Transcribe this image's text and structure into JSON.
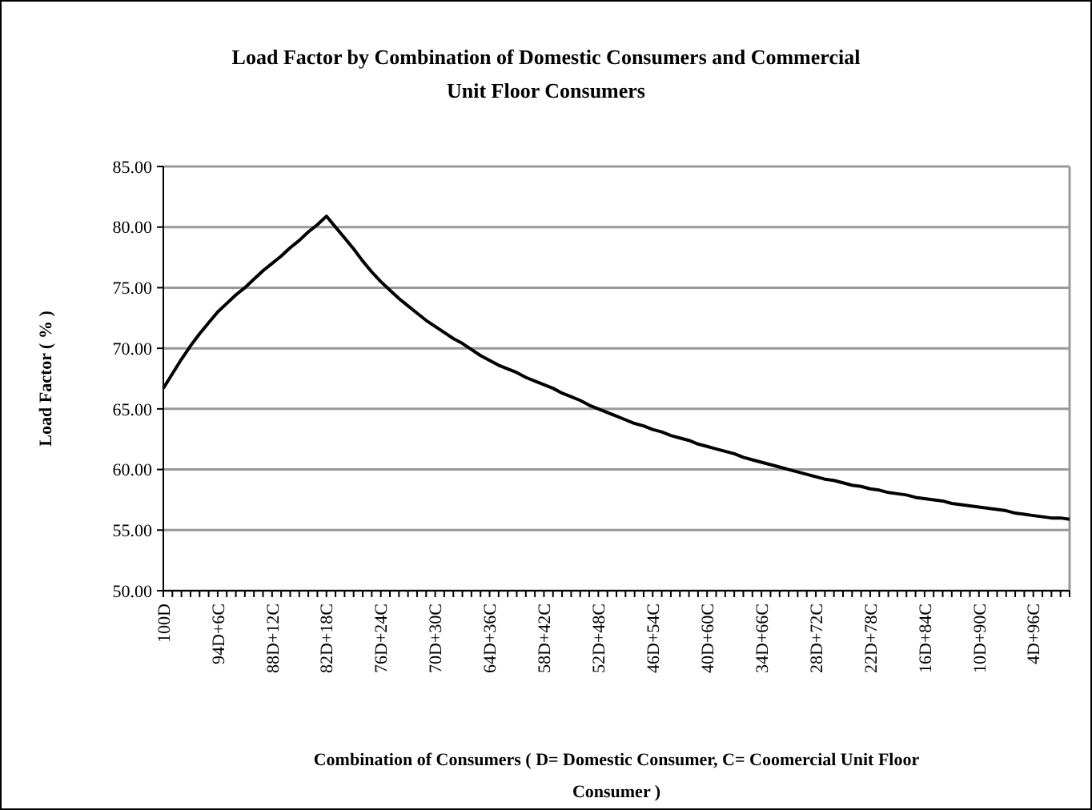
{
  "chart_data": {
    "type": "line",
    "title": "Load Factor by Combination of Domestic Consumers and Commercial Unit Floor Consumers",
    "xlabel": "Combination of Consumers ( D= Domestic Consumer, C= Coomercial Unit Floor Consumer )",
    "ylabel": "Load Factor ( % )",
    "categories": [
      "100D",
      null,
      null,
      null,
      null,
      null,
      "94D+6C",
      null,
      null,
      null,
      null,
      null,
      "88D+12C",
      null,
      null,
      null,
      null,
      null,
      "82D+18C",
      null,
      null,
      null,
      null,
      null,
      "76D+24C",
      null,
      null,
      null,
      null,
      null,
      "70D+30C",
      null,
      null,
      null,
      null,
      null,
      "64D+36C",
      null,
      null,
      null,
      null,
      null,
      "58D+42C",
      null,
      null,
      null,
      null,
      null,
      "52D+48C",
      null,
      null,
      null,
      null,
      null,
      "46D+54C",
      null,
      null,
      null,
      null,
      null,
      "40D+60C",
      null,
      null,
      null,
      null,
      null,
      "34D+66C",
      null,
      null,
      null,
      null,
      null,
      "28D+72C",
      null,
      null,
      null,
      null,
      null,
      "22D+78C",
      null,
      null,
      null,
      null,
      null,
      "16D+84C",
      null,
      null,
      null,
      null,
      null,
      "10D+90C",
      null,
      null,
      null,
      null,
      null,
      "4D+96C",
      null,
      null,
      null,
      null
    ],
    "series": [
      {
        "color": "#000000",
        "values": [
          66.7,
          67.9,
          69.1,
          70.2,
          71.2,
          72.1,
          73.0,
          73.7,
          74.4,
          75.0,
          75.7,
          76.4,
          77.0,
          77.6,
          78.3,
          78.9,
          79.6,
          80.2,
          80.9,
          80.0,
          79.1,
          78.2,
          77.2,
          76.3,
          75.5,
          74.8,
          74.1,
          73.5,
          72.9,
          72.3,
          71.8,
          71.3,
          70.8,
          70.4,
          69.9,
          69.4,
          69.0,
          68.6,
          68.3,
          68.0,
          67.6,
          67.3,
          67.0,
          66.7,
          66.3,
          66.0,
          65.7,
          65.3,
          65.0,
          64.7,
          64.4,
          64.1,
          63.8,
          63.6,
          63.3,
          63.1,
          62.8,
          62.6,
          62.4,
          62.1,
          61.9,
          61.7,
          61.5,
          61.3,
          61.0,
          60.8,
          60.6,
          60.4,
          60.2,
          60.0,
          59.8,
          59.6,
          59.4,
          59.2,
          59.1,
          58.9,
          58.7,
          58.6,
          58.4,
          58.3,
          58.1,
          58.0,
          57.9,
          57.7,
          57.6,
          57.5,
          57.4,
          57.2,
          57.1,
          57.0,
          56.9,
          56.8,
          56.7,
          56.6,
          56.4,
          56.3,
          56.2,
          56.1,
          56.0,
          56.0,
          55.9
        ]
      }
    ],
    "ylim": [
      50,
      85
    ],
    "yticks": [
      {
        "value": 50,
        "label": "50.00"
      },
      {
        "value": 55,
        "label": "55.00"
      },
      {
        "value": 60,
        "label": "60.00"
      },
      {
        "value": 65,
        "label": "65.00"
      },
      {
        "value": 70,
        "label": "70.00"
      },
      {
        "value": 75,
        "label": "75.00"
      },
      {
        "value": 80,
        "label": "80.00"
      },
      {
        "value": 85,
        "label": "85.00"
      }
    ],
    "grid": "y",
    "marker": "none",
    "line_style": "solid"
  }
}
